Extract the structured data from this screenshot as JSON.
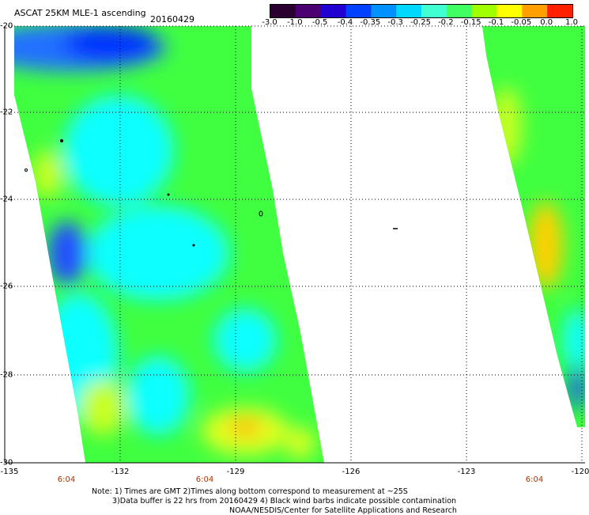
{
  "header": {
    "title": "ASCAT 25KM MLE-1 ascending",
    "date": "20160429"
  },
  "colorbar": {
    "colors": [
      "#2a0030",
      "#4a0070",
      "#2000d0",
      "#0040ff",
      "#0090ff",
      "#00d8ff",
      "#40ffd0",
      "#40ff60",
      "#a0ff00",
      "#ffff00",
      "#ffa000",
      "#ff2000"
    ],
    "labels": [
      "-3.0",
      "-1.0",
      "-0.5",
      "-0.4",
      "-0.35",
      "-0.3",
      "-0.25",
      "-0.2",
      "-0.15",
      "-0.1",
      "-0.05",
      "0.0",
      "1.0"
    ]
  },
  "axes": {
    "lat_labels": [
      "-20",
      "-22",
      "-24",
      "-26",
      "-28",
      "-30"
    ],
    "lon_labels": [
      "-135",
      "-132",
      "-129",
      "-126",
      "-123",
      "-120"
    ],
    "time_labels": [
      "6:04",
      "6:04",
      "6:04"
    ]
  },
  "colors": {
    "swath_main": "#40ff40",
    "swath_cyan": "#10ffff",
    "swath_blue": "#1050ff",
    "swath_yellow": "#c8ff20",
    "swath_orange": "#ffb000",
    "grid": "#000000",
    "time_label": "#b03000"
  },
  "notes": {
    "line1": "Note: 1) Times are GMT 2)Times along bottom correspond to measurement at ~25S",
    "line2": "3)Data buffer is 22 hrs from 20160429 4) Black wind barbs indicate possible contamination",
    "line3": "NOAA/NESDIS/Center for Satellite Applications and Research"
  }
}
